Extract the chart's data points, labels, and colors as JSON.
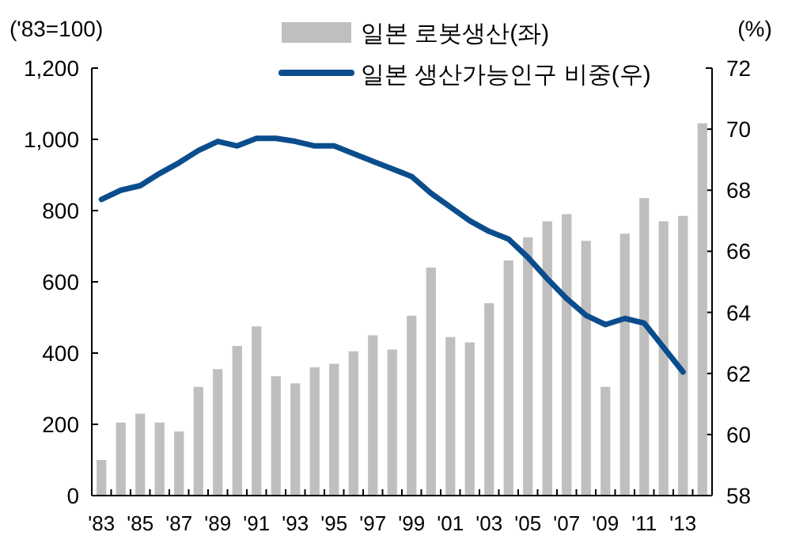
{
  "chart_data": {
    "type": "bar",
    "ylabel": "('83=100)",
    "y2label": "(%)",
    "categories": [
      "'83",
      null,
      "'85",
      null,
      "'87",
      null,
      "'89",
      null,
      "'91",
      null,
      "'93",
      null,
      "'95",
      null,
      "'97",
      null,
      "'99",
      null,
      "'01",
      null,
      "'03",
      null,
      "'05",
      null,
      "'07",
      null,
      "'09",
      null,
      "'11",
      null,
      "'13",
      null
    ],
    "series": [
      {
        "name": "일본 로봇생산(좌)",
        "color": "#bfbfbf",
        "values": [
          100,
          205,
          230,
          205,
          180,
          305,
          355,
          420,
          475,
          335,
          315,
          360,
          370,
          405,
          450,
          410,
          505,
          640,
          445,
          430,
          540,
          660,
          725,
          770,
          790,
          715,
          305,
          735,
          835,
          770,
          785,
          1045
        ]
      },
      {
        "name": "일본 생산가능인구 비중(우)",
        "type": "line",
        "axis": "y2",
        "color": "#0b4d8c",
        "values": [
          67.7,
          68.0,
          68.15,
          68.55,
          68.9,
          69.3,
          69.6,
          69.45,
          69.7,
          69.7,
          69.6,
          69.45,
          69.45,
          69.2,
          68.95,
          68.7,
          68.45,
          67.9,
          67.45,
          67.0,
          66.65,
          66.4,
          65.8,
          65.1,
          64.45,
          63.9,
          63.6,
          63.8,
          63.65,
          62.85,
          62.05,
          null
        ]
      }
    ],
    "ylim": [
      0,
      1200
    ],
    "yticks": [
      0,
      200,
      400,
      600,
      800,
      {
        "value": 1000,
        "label": "1,000"
      },
      {
        "value": 1200,
        "label": "1,200"
      }
    ],
    "y2lim": [
      58,
      72
    ],
    "y2ticks": [
      58,
      60,
      62,
      64,
      66,
      68,
      70,
      72
    ],
    "legend": "top right",
    "grid": false
  }
}
